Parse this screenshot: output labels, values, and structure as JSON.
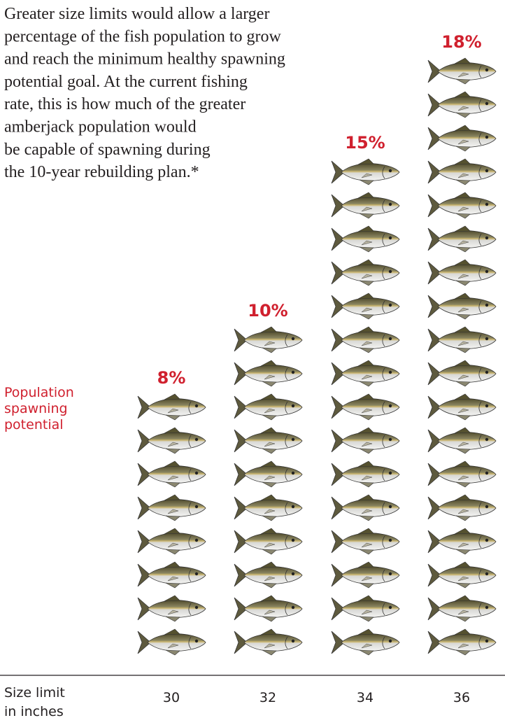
{
  "chart_data": {
    "type": "pictogram",
    "description": [
      "Greater size limits would allow a larger",
      "percentage of the fish population to grow",
      "and reach the minimum healthy spawning",
      "potential goal. At the current fishing",
      "rate, this is how much of the greater",
      "amberjack population would",
      "be capable of spawning during",
      "the 10-year rebuilding plan.*"
    ],
    "y_label": [
      "Population",
      "spawning",
      "potential"
    ],
    "x_label": [
      "Size limit",
      "in inches"
    ],
    "categories": [
      "30",
      "32",
      "34",
      "36"
    ],
    "values": [
      8,
      10,
      15,
      18
    ],
    "value_labels": [
      "8%",
      "10%",
      "15%",
      "18%"
    ],
    "color": "#d0202e"
  }
}
